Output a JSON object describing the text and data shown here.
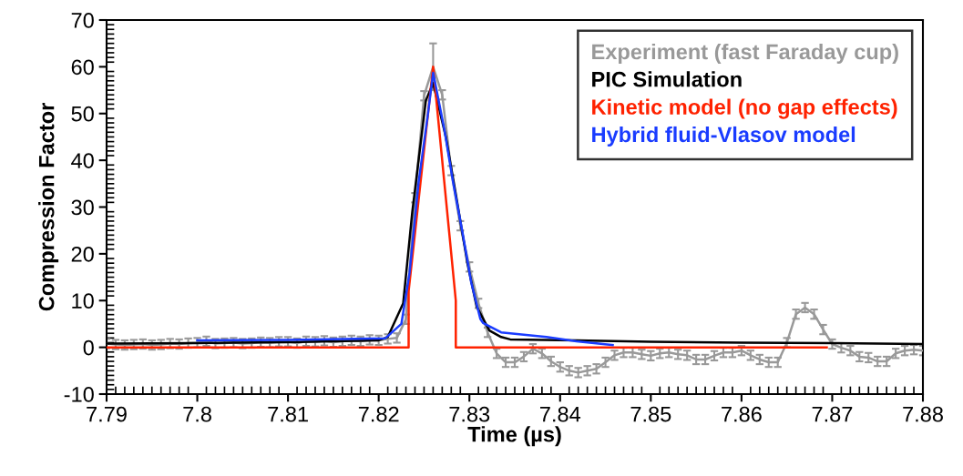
{
  "chart_data": {
    "type": "line",
    "xlabel": "Time (µs)",
    "ylabel": "Compression Factor",
    "xlim": [
      7.79,
      7.88
    ],
    "xticks": [
      7.79,
      7.8,
      7.81,
      7.82,
      7.83,
      7.84,
      7.85,
      7.86,
      7.87,
      7.88
    ],
    "ylim": [
      -10,
      70
    ],
    "yticks": [
      -10,
      0,
      10,
      20,
      30,
      40,
      50,
      60,
      70
    ],
    "grid": false,
    "legend": "top right",
    "marker": "none",
    "line_style": "solid",
    "series": [
      {
        "name": "Experiment (fast Faraday cup)",
        "color": "#999999",
        "x": [
          7.79,
          7.791,
          7.792,
          7.793,
          7.794,
          7.795,
          7.796,
          7.797,
          7.798,
          7.799,
          7.8,
          7.801,
          7.802,
          7.803,
          7.804,
          7.805,
          7.806,
          7.807,
          7.808,
          7.809,
          7.81,
          7.811,
          7.812,
          7.813,
          7.814,
          7.815,
          7.816,
          7.817,
          7.818,
          7.819,
          7.82,
          7.821,
          7.822,
          7.823,
          7.824,
          7.825,
          7.826,
          7.827,
          7.828,
          7.829,
          7.83,
          7.831,
          7.832,
          7.833,
          7.834,
          7.835,
          7.836,
          7.837,
          7.838,
          7.839,
          7.84,
          7.841,
          7.842,
          7.843,
          7.844,
          7.845,
          7.846,
          7.847,
          7.848,
          7.849,
          7.85,
          7.851,
          7.852,
          7.853,
          7.854,
          7.855,
          7.856,
          7.857,
          7.858,
          7.859,
          7.86,
          7.861,
          7.862,
          7.863,
          7.864,
          7.865,
          7.866,
          7.867,
          7.868,
          7.869,
          7.87,
          7.871,
          7.872,
          7.873,
          7.874,
          7.875,
          7.876,
          7.877,
          7.878,
          7.879,
          7.88
        ],
        "values": [
          0.8,
          0.6,
          0.5,
          0.6,
          0.7,
          0.5,
          0.6,
          0.8,
          0.7,
          0.9,
          1.0,
          1.3,
          0.8,
          0.9,
          1.0,
          0.8,
          0.9,
          1.1,
          1.0,
          1.2,
          1.2,
          0.9,
          1.3,
          1.2,
          1.4,
          1.1,
          1.3,
          1.5,
          1.3,
          1.6,
          1.5,
          1.8,
          2.0,
          6,
          32,
          53.8,
          60,
          54,
          37.8,
          26,
          17.2,
          9.4,
          3.2,
          -1.3,
          -3.2,
          -3.2,
          -2,
          -0.3,
          -1.3,
          -3,
          -4.2,
          -5,
          -5.4,
          -5,
          -4.6,
          -3.2,
          -1.7,
          -1.1,
          -1.1,
          -1.5,
          -1.8,
          -1.3,
          -1.1,
          -1.5,
          -1.7,
          -2.6,
          -2.6,
          -1.8,
          -1.1,
          -1.1,
          -0.7,
          -1.7,
          -2.6,
          -3.2,
          -3.2,
          1.0,
          7.1,
          8.5,
          7.1,
          3.8,
          0.7,
          -0.1,
          -0.7,
          -2,
          -2.2,
          -3,
          -3,
          -1.3,
          -0.7,
          -0.5,
          -0.7
        ],
        "errors": [
          1,
          1,
          1,
          1,
          1,
          1,
          1,
          1,
          1,
          1,
          1,
          1,
          1,
          1,
          1,
          1,
          1,
          1,
          1,
          1,
          1,
          1,
          1,
          1,
          1,
          1,
          1,
          1,
          1,
          1,
          1,
          1,
          1,
          1,
          1,
          1,
          5,
          1,
          1,
          1,
          1,
          1,
          1,
          1,
          1,
          1,
          1,
          1,
          1,
          1,
          1,
          1,
          1,
          1,
          1,
          1,
          1,
          1,
          1,
          1,
          1,
          1,
          1,
          1,
          1,
          1,
          1,
          1,
          1,
          1,
          1,
          1,
          1,
          1,
          1,
          1,
          1,
          1,
          1,
          1,
          1,
          1,
          1,
          1,
          1,
          1,
          1,
          1,
          1,
          1,
          1
        ]
      },
      {
        "name": "PIC Simulation",
        "color": "#000000",
        "x": [
          7.79,
          7.8,
          7.81,
          7.815,
          7.82,
          7.821,
          7.8227,
          7.8237,
          7.8252,
          7.826,
          7.8274,
          7.8285,
          7.8298,
          7.8308,
          7.8322,
          7.8335,
          7.8345,
          7.8418,
          7.85,
          7.86,
          7.87,
          7.88
        ],
        "values": [
          0.8,
          0.9,
          1.1,
          1.3,
          1.5,
          2.2,
          9.4,
          28.9,
          52.8,
          56.5,
          45,
          32.8,
          17.8,
          8.7,
          3.6,
          2.2,
          1.7,
          1.5,
          1.2,
          1.0,
          0.9,
          0.7
        ]
      },
      {
        "name": "Kinetic model (no gap effects)",
        "color": "#ff2200",
        "x": [
          7.79,
          7.8233,
          7.8233,
          7.826,
          7.8285,
          7.8285,
          7.8694
        ],
        "values": [
          0,
          0,
          12,
          60,
          10,
          0,
          0
        ]
      },
      {
        "name": "Hybrid fluid-Vlasov model",
        "color": "#1a3cff",
        "x": [
          7.8,
          7.81,
          7.8207,
          7.8225,
          7.8234,
          7.8244,
          7.8254,
          7.826,
          7.8272,
          7.8282,
          7.8292,
          7.8302,
          7.8312,
          7.8315,
          7.8335,
          7.8385,
          7.8418,
          7.8458
        ],
        "values": [
          1.5,
          1.6,
          1.9,
          5,
          15.9,
          35.3,
          49.5,
          58.7,
          47,
          35.3,
          25,
          13.9,
          6.1,
          5.2,
          3.2,
          2.2,
          1.3,
          0.5
        ]
      }
    ]
  }
}
